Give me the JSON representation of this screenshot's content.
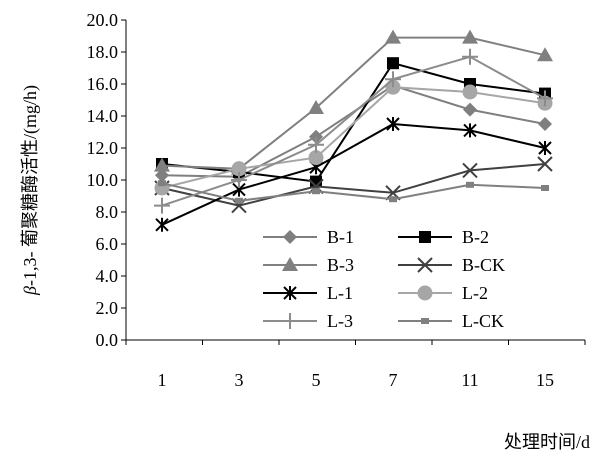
{
  "chart_data": {
    "type": "line",
    "title": "",
    "xlabel": "处理时间/d",
    "ylabel_prefix": "β",
    "ylabel": "-1,3- 葡聚糖酶活性/(mg/h)",
    "categories": [
      "1",
      "3",
      "5",
      "7",
      "11",
      "15"
    ],
    "ylim": [
      0,
      20
    ],
    "yticks": [
      "0.0",
      "2.0",
      "4.0",
      "6.0",
      "8.0",
      "10.0",
      "12.0",
      "14.0",
      "16.0",
      "18.0",
      "20.0"
    ],
    "grid": false,
    "legend_position": "lower-center",
    "series": [
      {
        "name": "B-1",
        "values": [
          10.3,
          10.2,
          12.7,
          15.9,
          14.4,
          13.5
        ],
        "color": "#7f7f7f",
        "marker": "diamond"
      },
      {
        "name": "B-2",
        "values": [
          11.0,
          10.5,
          9.9,
          17.3,
          16.0,
          15.4
        ],
        "color": "#000000",
        "marker": "square"
      },
      {
        "name": "B-3",
        "values": [
          10.9,
          10.7,
          14.5,
          18.9,
          18.9,
          17.8
        ],
        "color": "#808080",
        "marker": "triangle"
      },
      {
        "name": "B-CK",
        "values": [
          9.5,
          8.4,
          9.6,
          9.2,
          10.6,
          11.0
        ],
        "color": "#404040",
        "marker": "x"
      },
      {
        "name": "L-1",
        "values": [
          7.2,
          9.4,
          10.8,
          13.5,
          13.1,
          12.0
        ],
        "color": "#000000",
        "marker": "asterisk"
      },
      {
        "name": "L-2",
        "values": [
          9.5,
          10.7,
          11.4,
          15.8,
          15.5,
          14.8
        ],
        "color": "#a6a6a6",
        "marker": "circle"
      },
      {
        "name": "L-3",
        "values": [
          8.4,
          10.0,
          12.2,
          16.3,
          17.7,
          15.1
        ],
        "color": "#8c8c8c",
        "marker": "plus"
      },
      {
        "name": "L-CK",
        "values": [
          9.8,
          8.7,
          9.3,
          8.8,
          9.7,
          9.5
        ],
        "color": "#808080",
        "marker": "small-square"
      }
    ]
  }
}
